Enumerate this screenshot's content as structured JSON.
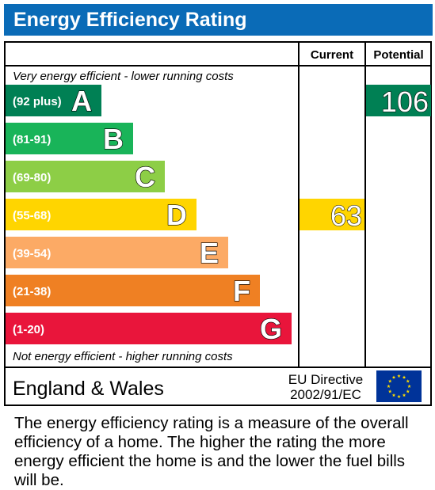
{
  "title": "Energy Efficiency Rating",
  "columns": {
    "current": "Current",
    "potential": "Potential"
  },
  "top_note": "Very energy efficient - lower running costs",
  "bottom_note": "Not energy efficient - higher running costs",
  "footer": {
    "country": "England & Wales",
    "directive_line1": "EU Directive",
    "directive_line2": "2002/91/EC",
    "flag_icon": "eu-flag-icon"
  },
  "caption": "The energy efficiency rating is a measure of the overall efficiency of a home. The higher the rating the more energy efficient the home is and the lower the fuel bills will be.",
  "chart_data": {
    "type": "bar",
    "categories": [
      "A",
      "B",
      "C",
      "D",
      "E",
      "F",
      "G"
    ],
    "bands": [
      {
        "letter": "A",
        "range": "(92 plus)",
        "color": "#008054"
      },
      {
        "letter": "B",
        "range": "(81-91)",
        "color": "#19b459"
      },
      {
        "letter": "C",
        "range": "(69-80)",
        "color": "#8dce46"
      },
      {
        "letter": "D",
        "range": "(55-68)",
        "color": "#ffd500"
      },
      {
        "letter": "E",
        "range": "(39-54)",
        "color": "#fcaa65"
      },
      {
        "letter": "F",
        "range": "(21-38)",
        "color": "#ef8023"
      },
      {
        "letter": "G",
        "range": "(1-20)",
        "color": "#e9153b"
      }
    ],
    "current": {
      "value": 63,
      "band": "D",
      "color": "#ffd500"
    },
    "potential": {
      "value": 106,
      "band": "A",
      "color": "#008054"
    }
  }
}
